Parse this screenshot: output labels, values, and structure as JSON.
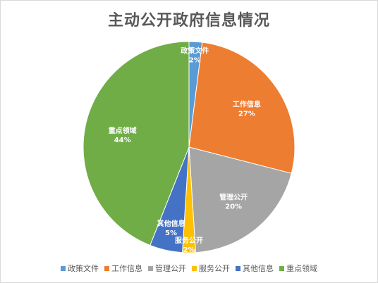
{
  "chart_data": {
    "type": "pie",
    "title": "主动公开政府信息情况",
    "categories": [
      "政策文件",
      "工作信息",
      "管理公开",
      "服务公开",
      "其他信息",
      "重点领域"
    ],
    "values": [
      2,
      27,
      20,
      2,
      5,
      44
    ],
    "value_labels": [
      "2%",
      "27%",
      "20%",
      "2%",
      "5%",
      "44%"
    ],
    "colors": [
      "#5b9bd5",
      "#ed7d31",
      "#a5a5a5",
      "#ffc000",
      "#4472c4",
      "#70ad47"
    ],
    "start_angle_deg": 0,
    "direction": "clockwise",
    "legend_position": "bottom"
  }
}
